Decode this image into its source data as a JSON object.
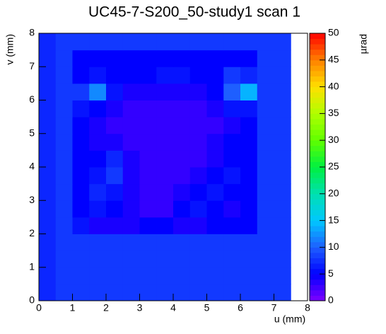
{
  "chart_data": {
    "type": "heatmap",
    "title": "UC45-7-S200_50-study1 scan 1",
    "x_label": "u (mm)",
    "y_label": "v (mm)",
    "z_label": "µrad",
    "xbins": [
      0,
      0.5,
      1,
      1.5,
      2,
      2.5,
      3,
      3.5,
      4,
      4.5,
      5,
      5.5,
      6,
      6.5,
      7,
      7.5,
      8
    ],
    "ybins": [
      0,
      0.5,
      1,
      1.5,
      2,
      2.5,
      3,
      3.5,
      4,
      4.5,
      5,
      5.5,
      6,
      6.5,
      7,
      7.5,
      8
    ],
    "values": [
      [
        7,
        8,
        8,
        8,
        8,
        8,
        8,
        8,
        8,
        8,
        8,
        8,
        8,
        8,
        8,
        null
      ],
      [
        7,
        8,
        8,
        8,
        8,
        8,
        8,
        8,
        8,
        8,
        8,
        8,
        8,
        8,
        8,
        null
      ],
      [
        7,
        8,
        8,
        8,
        8,
        8,
        8,
        8,
        8,
        8,
        8,
        8,
        8,
        8,
        8,
        null
      ],
      [
        7,
        8,
        8,
        8,
        8,
        8,
        8,
        8,
        8,
        8,
        8,
        8,
        8,
        8,
        8,
        null
      ],
      [
        7,
        8,
        6,
        4,
        4,
        4,
        5,
        5,
        4,
        4,
        5,
        5,
        5,
        8,
        8,
        null
      ],
      [
        7,
        8,
        5,
        6,
        5,
        4,
        3,
        3,
        5,
        6,
        5,
        4,
        5,
        8,
        8,
        null
      ],
      [
        7,
        8,
        5,
        7,
        6,
        4,
        3,
        3,
        4,
        5,
        6,
        5,
        5,
        8,
        8,
        null
      ],
      [
        7,
        8,
        5,
        6,
        8,
        4,
        3,
        3,
        3,
        4,
        5,
        6,
        5,
        8,
        8,
        null
      ],
      [
        7,
        8,
        5,
        5,
        7,
        4,
        3,
        3,
        3,
        3,
        4,
        5,
        5,
        8,
        8,
        null
      ],
      [
        7,
        8,
        5,
        4,
        4,
        3,
        3,
        3,
        3,
        3,
        4,
        5,
        5,
        8,
        8,
        null
      ],
      [
        7,
        8,
        5,
        4,
        3,
        3,
        3,
        3,
        3,
        3,
        3,
        4,
        5,
        8,
        8,
        null
      ],
      [
        7,
        8,
        6,
        5,
        4,
        3,
        3,
        3,
        3,
        3,
        4,
        6,
        6,
        8,
        8,
        null
      ],
      [
        7,
        8,
        8,
        12,
        6,
        4,
        4,
        4,
        4,
        4,
        5,
        10,
        14,
        8,
        8,
        null
      ],
      [
        7,
        8,
        5,
        6,
        5,
        5,
        5,
        6,
        6,
        5,
        5,
        8,
        7,
        8,
        8,
        null
      ],
      [
        7,
        8,
        5,
        5,
        5,
        5,
        5,
        5,
        5,
        5,
        5,
        5,
        5,
        8,
        8,
        null
      ],
      [
        7,
        8,
        8,
        8,
        8,
        8,
        8,
        8,
        8,
        8,
        8,
        8,
        8,
        8,
        8,
        null
      ]
    ],
    "xlim": [
      0,
      8
    ],
    "ylim": [
      0,
      8
    ],
    "zlim": [
      0,
      50
    ],
    "xticks": [
      0,
      1,
      2,
      3,
      4,
      5,
      6,
      7,
      8
    ],
    "yticks": [
      0,
      1,
      2,
      3,
      4,
      5,
      6,
      7,
      8
    ],
    "zticks": [
      0,
      5,
      10,
      15,
      20,
      25,
      30,
      35,
      40,
      45,
      50
    ],
    "palette": [
      "#7f00ff",
      "#0000ff",
      "#1e5fff",
      "#00c8ff",
      "#00e0b0",
      "#00f040",
      "#60ff00",
      "#b0ff00",
      "#ffe000",
      "#ff8000",
      "#ff0000"
    ]
  }
}
